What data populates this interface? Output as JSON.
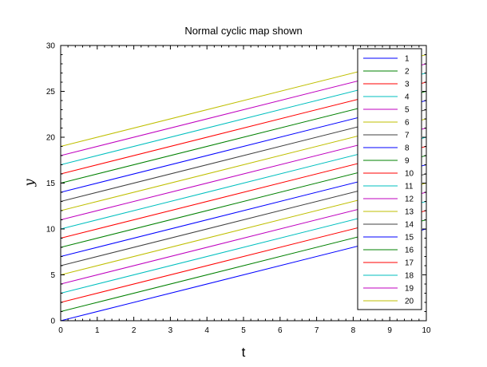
{
  "chart_data": {
    "type": "line",
    "title": "Normal cyclic map shown",
    "xlabel": "t",
    "ylabel": "y",
    "xlim": [
      0,
      10
    ],
    "ylim": [
      0,
      30
    ],
    "x_ticks": [
      "0",
      "1",
      "2",
      "3",
      "4",
      "5",
      "6",
      "7",
      "8",
      "9",
      "10"
    ],
    "y_ticks": [
      "0",
      "5",
      "10",
      "15",
      "20",
      "25",
      "30"
    ],
    "grid": false,
    "legend_position": "top-right",
    "x": [
      0,
      10
    ],
    "series": [
      {
        "name": "1",
        "color": "#0000ff",
        "values": [
          0,
          10
        ]
      },
      {
        "name": "2",
        "color": "#008000",
        "values": [
          1,
          11
        ]
      },
      {
        "name": "3",
        "color": "#ff0000",
        "values": [
          2,
          12
        ]
      },
      {
        "name": "4",
        "color": "#00bfbf",
        "values": [
          3,
          13
        ]
      },
      {
        "name": "5",
        "color": "#bf00bf",
        "values": [
          4,
          14
        ]
      },
      {
        "name": "6",
        "color": "#bfbf00",
        "values": [
          5,
          15
        ]
      },
      {
        "name": "7",
        "color": "#404040",
        "values": [
          6,
          16
        ]
      },
      {
        "name": "8",
        "color": "#0000ff",
        "values": [
          7,
          17
        ]
      },
      {
        "name": "9",
        "color": "#008000",
        "values": [
          8,
          18
        ]
      },
      {
        "name": "10",
        "color": "#ff0000",
        "values": [
          9,
          19
        ]
      },
      {
        "name": "11",
        "color": "#00bfbf",
        "values": [
          10,
          20
        ]
      },
      {
        "name": "12",
        "color": "#bf00bf",
        "values": [
          11,
          21
        ]
      },
      {
        "name": "13",
        "color": "#bfbf00",
        "values": [
          12,
          22
        ]
      },
      {
        "name": "14",
        "color": "#404040",
        "values": [
          13,
          23
        ]
      },
      {
        "name": "15",
        "color": "#0000ff",
        "values": [
          14,
          24
        ]
      },
      {
        "name": "16",
        "color": "#008000",
        "values": [
          15,
          25
        ]
      },
      {
        "name": "17",
        "color": "#ff0000",
        "values": [
          16,
          26
        ]
      },
      {
        "name": "18",
        "color": "#00bfbf",
        "values": [
          17,
          27
        ]
      },
      {
        "name": "19",
        "color": "#bf00bf",
        "values": [
          18,
          28
        ]
      },
      {
        "name": "20",
        "color": "#bfbf00",
        "values": [
          19,
          29
        ]
      }
    ]
  }
}
